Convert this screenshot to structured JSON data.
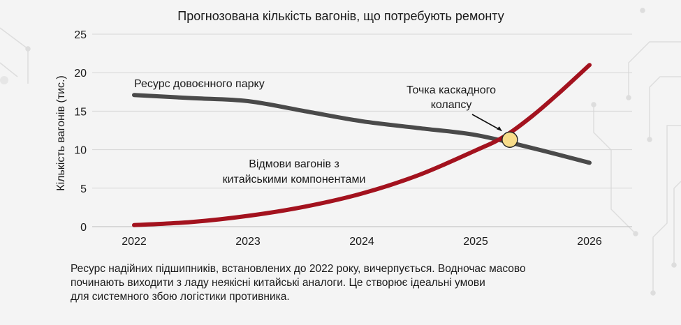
{
  "chart_data": {
    "type": "line",
    "title": "Прогнозована кількість вагонів, що потребують ремонту",
    "xlabel": "",
    "ylabel": "Кількість вагонів (тис.)",
    "categories": [
      "2022",
      "2023",
      "2024",
      "2025",
      "2026"
    ],
    "ylim": [
      0,
      25
    ],
    "yticks": [
      "0",
      "5",
      "10",
      "15",
      "20",
      "25"
    ],
    "grid": "horizontal",
    "series": [
      {
        "name": "Ресурс довоєнного парку",
        "color": "#4a4a4a",
        "x": [
          2022,
          2022.5,
          2023,
          2023.5,
          2024,
          2024.5,
          2025,
          2025.5,
          2026
        ],
        "values": [
          17.1,
          16.7,
          16.3,
          15.0,
          13.7,
          12.8,
          11.9,
          10.2,
          8.3
        ]
      },
      {
        "name": "Відмови вагонів з китайськими компонентами",
        "color": "#a3121e",
        "x": [
          2022,
          2022.5,
          2023,
          2023.5,
          2024,
          2024.5,
          2025,
          2025.25,
          2025.5,
          2025.75,
          2026
        ],
        "values": [
          0.2,
          0.6,
          1.4,
          2.6,
          4.3,
          6.7,
          9.9,
          11.7,
          14.4,
          17.6,
          21.0
        ]
      }
    ],
    "series_labels": [
      {
        "lines": [
          "Ресурс довоєнного парку"
        ]
      },
      {
        "lines": [
          "Відмови вагонів з",
          "китайськими компонентами"
        ]
      }
    ],
    "annotation": {
      "text_lines": [
        "Точка каскадного",
        "колапсу"
      ],
      "x": 2025.3,
      "y": 11.3,
      "marker_color": "#f7dc8a"
    }
  },
  "caption": {
    "lines": [
      "Ресурс надійних підшипників, встановлених до 2022 року, вичерпується. Водночас масово",
      "починають виходити з ладу неякісні китайські аналоги. Це створює ідеальні умови",
      "для системного збою логістики противника."
    ]
  }
}
